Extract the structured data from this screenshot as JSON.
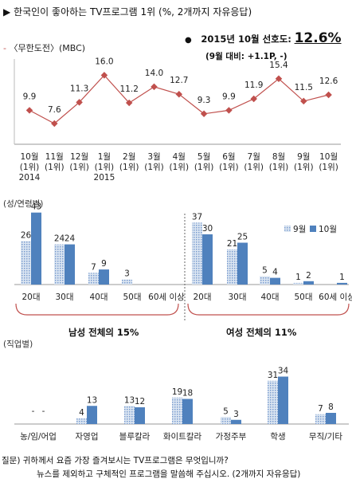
{
  "header": {
    "marker": "▶",
    "title": "한국인이 좋아하는 TV프로그램 1위",
    "subtitle": "(%, 2개까지 자유응답)"
  },
  "line_section": {
    "legend_dash": "-",
    "legend": "〈무한도전〉(MBC)",
    "bullet": "●",
    "pref_label": "2015년 10월 선호도:",
    "pref_value": "12.6%",
    "change": "(9월 대비: +1.1P, -)"
  },
  "age_section": {
    "label": "(성/연령별)",
    "male_caption": "남성 전체의 15%",
    "female_caption": "여성 전체의 11%"
  },
  "job_section": {
    "label": "(직업별)"
  },
  "footer": {
    "q1": "질문) 귀하께서 요즘 가장 즐겨보시는 TV프로그램은 무엇입니까?",
    "q2": "뉴스를 제외하고 구체적인 프로그램을 말씀해 주십시오. (2개까지 자유응답)"
  },
  "colors": {
    "line": "#c0504d",
    "bar_sep": "#7a9ccf",
    "bar_oct": "#4f81bd",
    "axis": "#888888"
  },
  "chart_data": [
    {
      "type": "line",
      "categories": [
        "10월 (1위) 2014",
        "11월 (1위)",
        "12월 (1위)",
        "1월 (1위) 2015",
        "2월 (1위)",
        "3월 (1위)",
        "4월 (1위)",
        "5월 (1위)",
        "6월 (1위)",
        "7월 (1위)",
        "8월 (1위)",
        "9월 (1위)",
        "10월 (1위)"
      ],
      "tick_labels": [
        [
          "10월",
          "(1위)",
          "2014"
        ],
        [
          "11월",
          "(1위)"
        ],
        [
          "12월",
          "(1위)"
        ],
        [
          "1월",
          "(1위)",
          "2015"
        ],
        [
          "2월",
          "(1위)"
        ],
        [
          "3월",
          "(1위)"
        ],
        [
          "4월",
          "(1위)"
        ],
        [
          "5월",
          "(1위)"
        ],
        [
          "6월",
          "(1위)"
        ],
        [
          "7월",
          "(1위)"
        ],
        [
          "8월",
          "(1위)"
        ],
        [
          "9월",
          "(1위)"
        ],
        [
          "10월",
          "(1위)"
        ]
      ],
      "series": [
        {
          "name": "〈무한도전〉(MBC)",
          "values": [
            9.9,
            7.6,
            11.3,
            16.0,
            11.2,
            14.0,
            12.7,
            9.3,
            9.9,
            11.9,
            15.4,
            11.5,
            12.6
          ]
        }
      ],
      "ylim": [
        4,
        18
      ]
    },
    {
      "type": "bar",
      "categories": [
        "20대",
        "30대",
        "40대",
        "50대",
        "60세 이상",
        "20대",
        "30대",
        "40대",
        "50대",
        "60세 이상"
      ],
      "groups": [
        "남성",
        "여성"
      ],
      "series": [
        {
          "name": "9월",
          "values": [
            26,
            24,
            7,
            3,
            null,
            37,
            21,
            5,
            1,
            null
          ]
        },
        {
          "name": "10월",
          "values": [
            43,
            24,
            9,
            null,
            null,
            30,
            25,
            4,
            2,
            1
          ]
        }
      ],
      "ylim": [
        0,
        45
      ],
      "legend": "top-right"
    },
    {
      "type": "bar",
      "categories": [
        "농/임/어업",
        "자영업",
        "블루칼라",
        "화이트칼라",
        "가정주부",
        "학생",
        "무직/기타"
      ],
      "series": [
        {
          "name": "9월",
          "values": [
            "-",
            4,
            13,
            19,
            5,
            31,
            7
          ]
        },
        {
          "name": "10월",
          "values": [
            "-",
            13,
            12,
            18,
            3,
            34,
            8
          ]
        }
      ],
      "ylim": [
        0,
        36
      ]
    }
  ]
}
